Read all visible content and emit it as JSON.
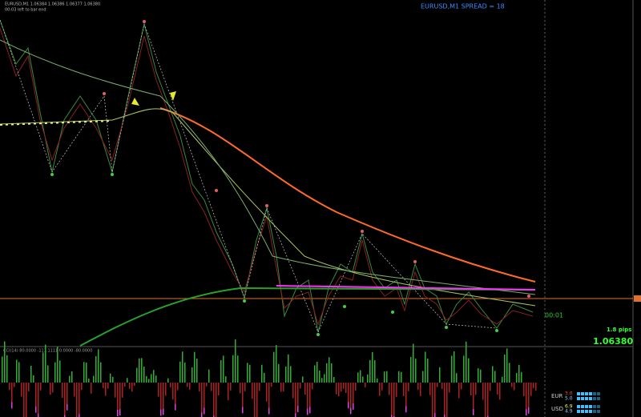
{
  "header": {
    "symbol_info": "EURUSD,M1  1.06384 1.06386 1.06377 1.06380",
    "timer": "00:03 left to bar end",
    "spread": "EURUSD,M1    SPREAD = 18"
  },
  "panel": {
    "countdown": "00:01",
    "pips": "1.8 pips",
    "price": "1.06380"
  },
  "indicator": {
    "label": "CCI(14) 80.0000 -111.1111 0.0000 -80.0000"
  },
  "strength": {
    "rows": [
      {
        "currency": "EUR",
        "values": [
          "3.0",
          "5.0"
        ]
      },
      {
        "currency": "USD",
        "values": [
          "6.9",
          "4.9"
        ]
      }
    ]
  }
}
